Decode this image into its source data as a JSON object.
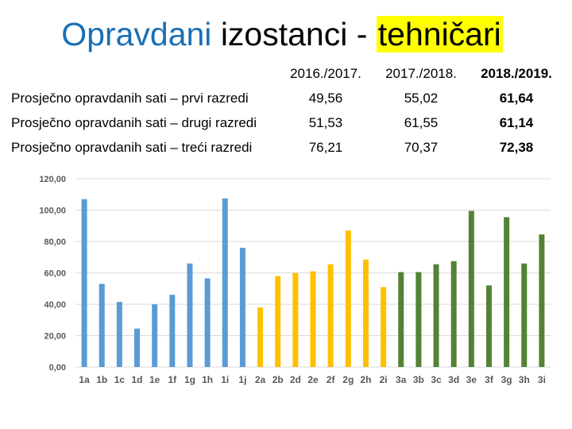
{
  "title": {
    "part1": "Opravdani",
    "part2": " izostanci - ",
    "part3": "tehničari"
  },
  "table": {
    "headers": [
      "2016./2017.",
      "2017./2018.",
      "2018./2019."
    ],
    "rows": [
      {
        "label": "Prosječno opravdanih sati – prvi razredi",
        "values": [
          "49,56",
          "55,02",
          "61,64"
        ]
      },
      {
        "label": "Prosječno opravdanih sati – drugi razredi",
        "values": [
          "51,53",
          "61,55",
          "61,14"
        ]
      },
      {
        "label": "Prosječno opravdanih sati – treći razredi",
        "values": [
          "76,21",
          "70,37",
          "72,38"
        ]
      }
    ]
  },
  "chart_data": {
    "type": "bar",
    "ylim": [
      0,
      120
    ],
    "yticks": [
      "0,00",
      "20,00",
      "40,00",
      "60,00",
      "80,00",
      "100,00",
      "120,00"
    ],
    "grid": true,
    "categories": [
      "1a",
      "1b",
      "1c",
      "1d",
      "1e",
      "1f",
      "1g",
      "1h",
      "1i",
      "1j",
      "2a",
      "2b",
      "2d",
      "2e",
      "2f",
      "2g",
      "2h",
      "2i",
      "3a",
      "3b",
      "3c",
      "3d",
      "3e",
      "3f",
      "3g",
      "3h",
      "3i"
    ],
    "values": [
      107,
      53,
      41.5,
      24.5,
      40,
      46,
      66,
      56.5,
      107.5,
      76,
      38,
      58,
      60,
      61,
      65.5,
      87,
      68.5,
      51,
      60.5,
      60.5,
      65.5,
      67.5,
      99.5,
      52,
      95.5,
      66,
      84.5
    ],
    "bar_colors": [
      "#5b9bd5",
      "#5b9bd5",
      "#5b9bd5",
      "#5b9bd5",
      "#5b9bd5",
      "#5b9bd5",
      "#5b9bd5",
      "#5b9bd5",
      "#5b9bd5",
      "#5b9bd5",
      "#ffc000",
      "#ffc000",
      "#ffc000",
      "#ffc000",
      "#ffc000",
      "#ffc000",
      "#ffc000",
      "#ffc000",
      "#548235",
      "#548235",
      "#548235",
      "#548235",
      "#548235",
      "#548235",
      "#548235",
      "#548235",
      "#548235"
    ]
  }
}
